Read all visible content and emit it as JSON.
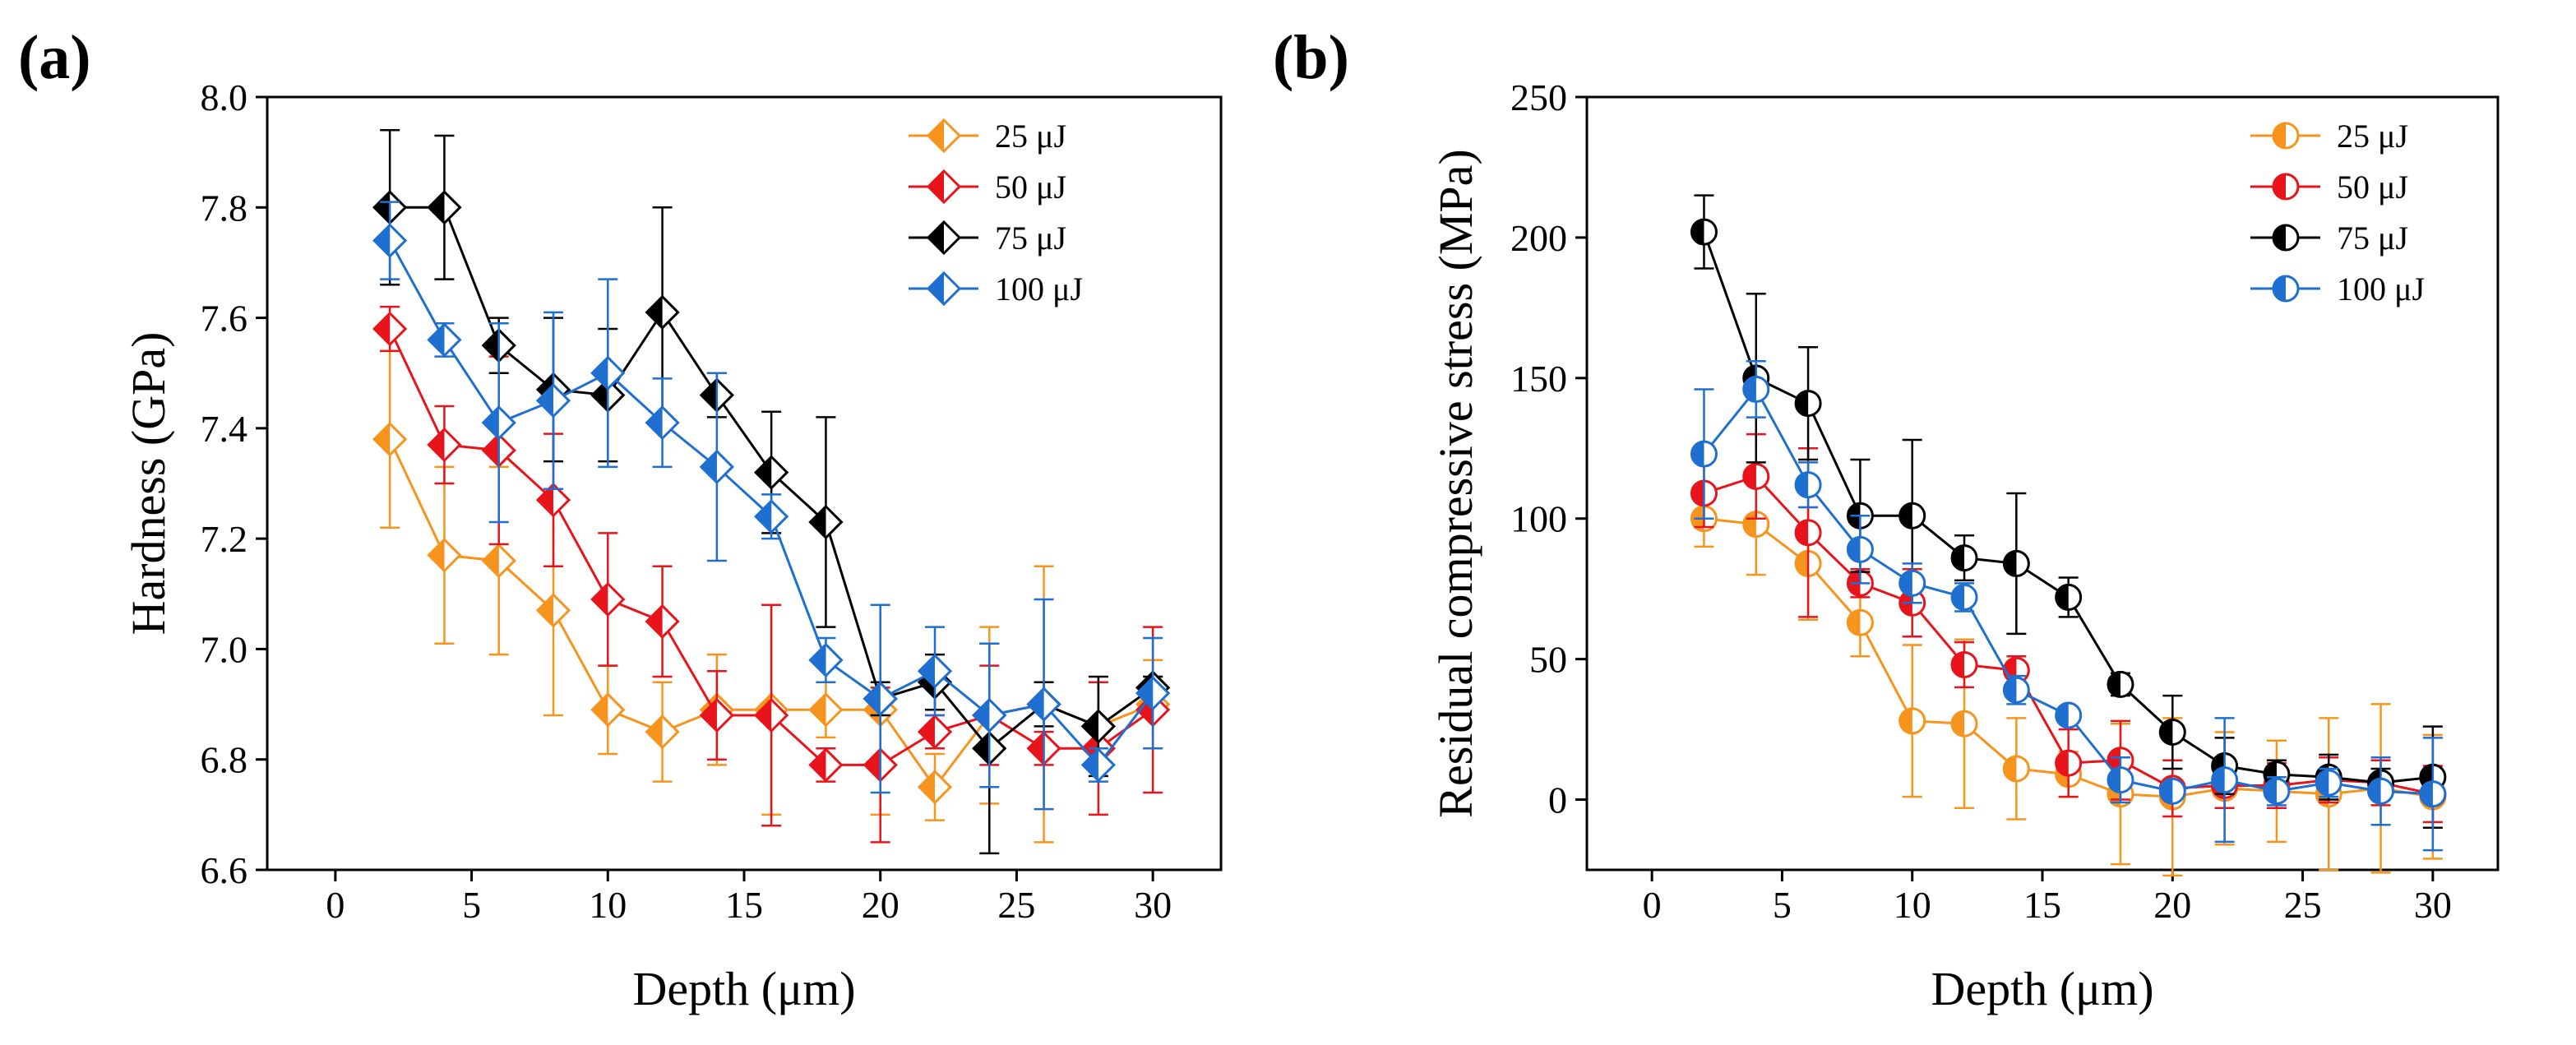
{
  "chart_data": [
    {
      "panel": "(a)",
      "type": "line",
      "marker": "diamond",
      "xlabel": "Depth (μm)",
      "ylabel": "Hardness (GPa)",
      "xlim": [
        -2.5,
        32.5
      ],
      "ylim": [
        6.6,
        8.0
      ],
      "xticks": [
        0,
        5,
        10,
        15,
        20,
        25,
        30
      ],
      "yticks": [
        "6.6",
        "6.8",
        "7.0",
        "7.2",
        "7.4",
        "7.6",
        "7.8",
        "8.0"
      ],
      "legend_position": "top-right",
      "x": [
        2,
        4,
        6,
        8,
        10,
        12,
        14,
        16,
        18,
        20,
        22,
        24,
        26,
        28,
        30
      ],
      "series": [
        {
          "name": "25 μJ",
          "color": "#F7941D",
          "values": [
            7.38,
            7.17,
            7.16,
            7.07,
            6.89,
            6.85,
            6.89,
            6.89,
            6.89,
            6.89,
            6.75,
            6.88,
            6.9,
            6.86,
            6.9
          ],
          "errors": [
            0.16,
            0.16,
            0.17,
            0.19,
            0.08,
            0.09,
            0.1,
            0.19,
            0.05,
            0.19,
            0.06,
            0.16,
            0.25,
            0.08,
            0.08
          ]
        },
        {
          "name": "50 μJ",
          "color": "#E8141B",
          "values": [
            7.58,
            7.37,
            7.36,
            7.27,
            7.09,
            7.05,
            6.88,
            6.88,
            6.79,
            6.79,
            6.85,
            6.88,
            6.82,
            6.82,
            6.89
          ],
          "errors": [
            0.04,
            0.07,
            0.17,
            0.12,
            0.12,
            0.1,
            0.08,
            0.2,
            0.03,
            0.14,
            0.03,
            0.09,
            0.03,
            0.12,
            0.15
          ]
        },
        {
          "name": "75 μJ",
          "color": "#000000",
          "values": [
            7.8,
            7.8,
            7.55,
            7.47,
            7.46,
            7.61,
            7.46,
            7.32,
            7.23,
            6.91,
            6.94,
            6.82,
            6.9,
            6.86,
            6.93
          ],
          "errors": [
            0.14,
            0.13,
            0.05,
            0.13,
            0.12,
            0.19,
            0.04,
            0.11,
            0.19,
            0.03,
            0.05,
            0.19,
            0.04,
            0.09,
            0.02
          ]
        },
        {
          "name": "100 μJ",
          "color": "#1F6FD1",
          "values": [
            7.74,
            7.56,
            7.41,
            7.45,
            7.5,
            7.41,
            7.33,
            7.24,
            6.98,
            6.91,
            6.96,
            6.88,
            6.9,
            6.79,
            6.92
          ],
          "errors": [
            0.07,
            0.03,
            0.18,
            0.16,
            0.17,
            0.08,
            0.17,
            0.04,
            0.04,
            0.17,
            0.08,
            0.13,
            0.19,
            0.03,
            0.1
          ]
        }
      ]
    },
    {
      "panel": "(b)",
      "type": "line",
      "marker": "half-filled circle",
      "xlabel": "Depth (μm)",
      "ylabel": "Residual compressive stress (MPa)",
      "xlim": [
        -2.5,
        32.5
      ],
      "ylim": [
        -25,
        250
      ],
      "xticks": [
        0,
        5,
        10,
        15,
        20,
        25,
        30
      ],
      "yticks": [
        "0",
        "50",
        "100",
        "150",
        "200",
        "250"
      ],
      "legend_position": "top-right",
      "x": [
        2,
        4,
        6,
        8,
        10,
        12,
        14,
        16,
        18,
        20,
        22,
        24,
        26,
        28,
        30
      ],
      "series": [
        {
          "name": "25 μJ",
          "color": "#F7941D",
          "values": [
            100,
            98,
            84,
            63,
            28,
            27,
            11,
            9,
            2,
            1,
            4,
            3,
            2,
            4,
            1
          ],
          "errors": [
            10,
            18,
            20,
            12,
            27,
            30,
            18,
            8,
            25,
            28,
            20,
            18,
            27,
            30,
            22
          ]
        },
        {
          "name": "50 μJ",
          "color": "#E8141B",
          "values": [
            109,
            115,
            95,
            77,
            70,
            48,
            46,
            13,
            14,
            4,
            5,
            5,
            7,
            6,
            2
          ],
          "errors": [
            12,
            15,
            30,
            5,
            12,
            8,
            5,
            12,
            14,
            10,
            8,
            8,
            8,
            8,
            10
          ]
        },
        {
          "name": "75 μJ",
          "color": "#000000",
          "values": [
            202,
            150,
            141,
            101,
            101,
            86,
            84,
            72,
            41,
            24,
            12,
            9,
            8,
            6,
            8
          ],
          "errors": [
            13,
            30,
            20,
            20,
            27,
            8,
            25,
            7,
            4,
            13,
            10,
            5,
            8,
            5,
            18
          ]
        },
        {
          "name": "100 μJ",
          "color": "#1F6FD1",
          "values": [
            123,
            146,
            112,
            89,
            77,
            72,
            39,
            30,
            7,
            3,
            7,
            3,
            6,
            3,
            2
          ],
          "errors": [
            23,
            10,
            8,
            12,
            7,
            5,
            5,
            3,
            8,
            3,
            22,
            5,
            5,
            12,
            20
          ]
        }
      ]
    }
  ]
}
